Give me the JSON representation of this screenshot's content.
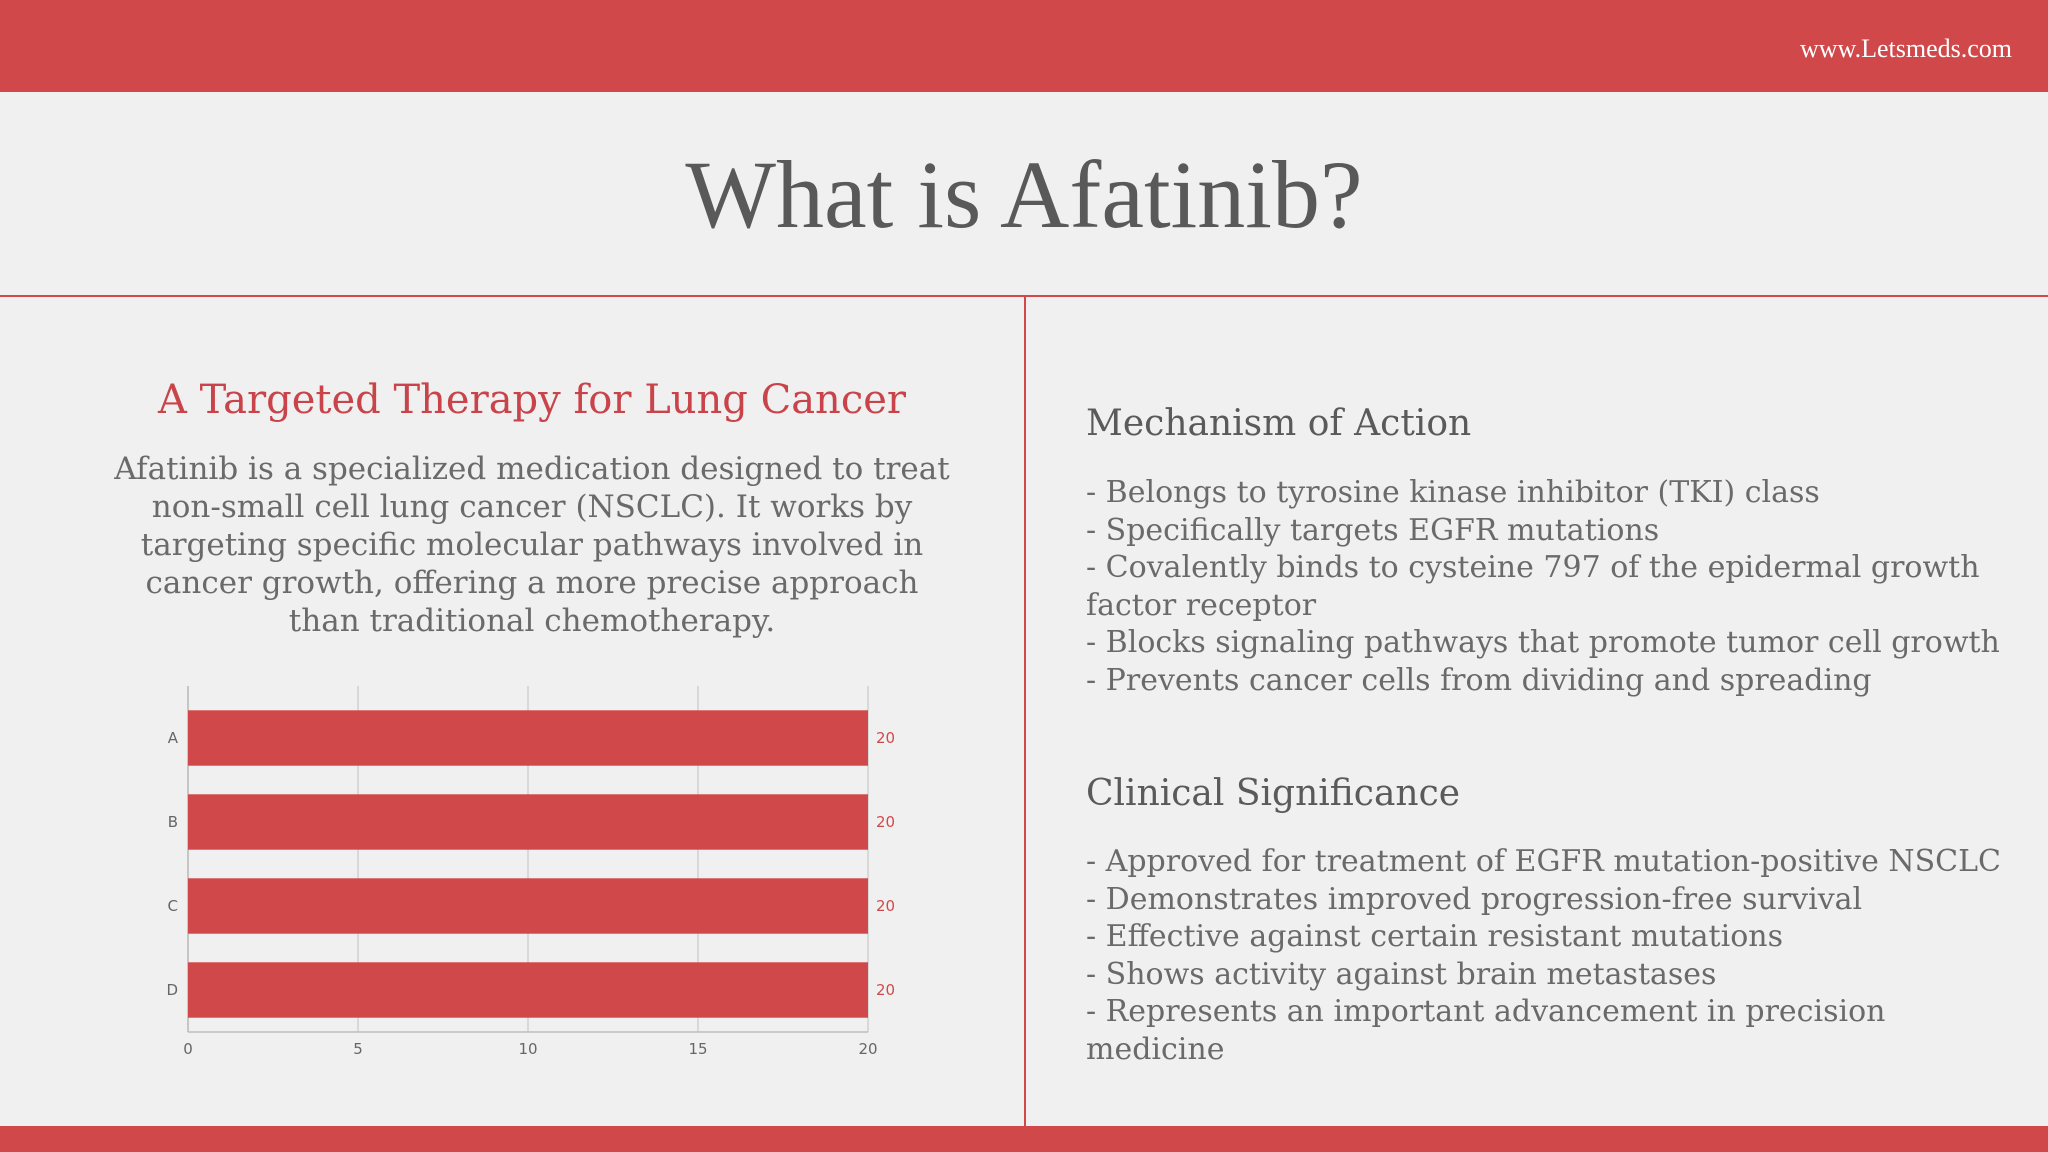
{
  "header": {
    "site_url": "www.Letsmeds.com"
  },
  "page_title": "What is Afatinib?",
  "left": {
    "heading": "A Targeted Therapy for Lung Cancer",
    "body": "Afatinib is a specialized medication designed to treat non-small cell lung cancer (NSCLC). It works by targeting specific molecular pathways involved in cancer growth, offering a more precise approach than traditional chemotherapy."
  },
  "right": {
    "mechanism": {
      "heading": "Mechanism of Action",
      "items": [
        "- Belongs to tyrosine kinase inhibitor (TKI) class",
        "- Specifically targets EGFR mutations",
        "- Covalently binds to cysteine 797 of the epidermal growth factor receptor",
        "- Blocks signaling pathways that promote tumor cell growth",
        "- Prevents cancer cells from dividing and spreading"
      ]
    },
    "clinical": {
      "heading": "Clinical Significance",
      "items": [
        "- Approved for treatment of EGFR mutation-positive NSCLC",
        "- Demonstrates improved progression-free survival",
        "- Effective against certain resistant mutations",
        "- Shows activity against brain metastases",
        "- Represents an important advancement in precision medicine"
      ]
    }
  },
  "colors": {
    "accent": "#d1484b",
    "bar": "#d1484b",
    "text": "#6a6a6a",
    "heading": "#5a5a5a"
  },
  "chart_data": {
    "type": "bar",
    "orientation": "horizontal",
    "categories": [
      "A",
      "B",
      "C",
      "D"
    ],
    "values": [
      20,
      20,
      20,
      20
    ],
    "data_labels": [
      "20",
      "20",
      "20",
      "20"
    ],
    "xlim": [
      0,
      20
    ],
    "xticks": [
      0,
      5,
      10,
      15,
      20
    ],
    "grid": "vertical",
    "legend": "none",
    "title": "",
    "xlabel": "",
    "ylabel": ""
  }
}
